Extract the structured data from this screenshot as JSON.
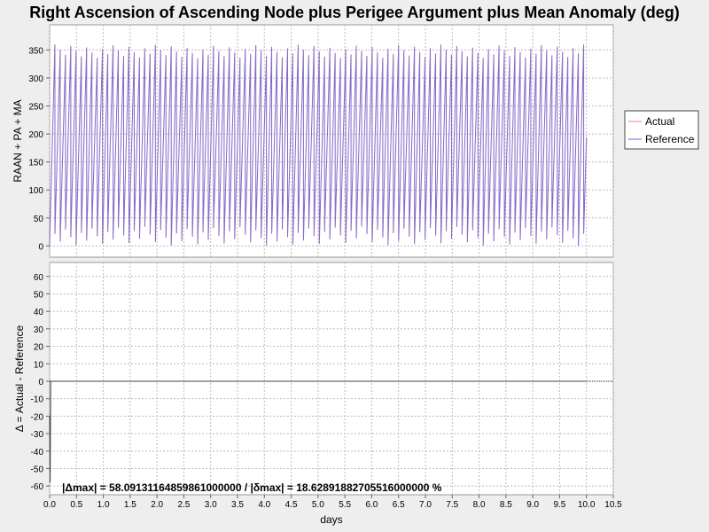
{
  "chart_data": {
    "type": "line",
    "title": "Right Ascension of Ascending Node plus Perigee Argument plus Mean Anomaly (deg)",
    "xlabel": "days",
    "xlim": [
      0.0,
      10.5
    ],
    "x_ticks": [
      "0.0",
      "0.5",
      "1.0",
      "1.5",
      "2.0",
      "2.5",
      "3.0",
      "3.5",
      "4.0",
      "4.5",
      "5.0",
      "5.5",
      "6.0",
      "6.5",
      "7.0",
      "7.5",
      "8.0",
      "8.5",
      "9.0",
      "9.5",
      "10.0",
      "10.5"
    ],
    "top_panel": {
      "ylabel": "RAAN + PA + MA",
      "ylim": [
        -20,
        395
      ],
      "y_ticks": [
        "0",
        "50",
        "100",
        "150",
        "200",
        "250",
        "300",
        "350"
      ],
      "grid": true,
      "series": [
        {
          "name": "Actual",
          "color": "#ff7a7a"
        },
        {
          "name": "Reference",
          "color": "#6464dc"
        }
      ],
      "wrap_period_days": 0.0985,
      "wrap_peak_range": [
        335,
        360
      ],
      "wrap_low_range": [
        0,
        35
      ],
      "x_end": 10.0
    },
    "bottom_panel": {
      "ylabel": "Δ = Actual - Reference",
      "ylim": [
        -65,
        68
      ],
      "y_ticks": [
        "60",
        "50",
        "40",
        "30",
        "20",
        "10",
        "0",
        "-10",
        "-20",
        "-30",
        "-40",
        "-50",
        "-60"
      ],
      "grid": true,
      "delta_series": {
        "x": [
          0.0,
          0.01,
          0.02,
          10.0
        ],
        "y": [
          -20,
          -58,
          0,
          0
        ]
      },
      "stats_text": "|Δmax| = 58.09131164859861000000      /      |δmax| = 18.62891882705516000000 %"
    },
    "legend": {
      "placement": "right",
      "entries": [
        "Actual",
        "Reference"
      ]
    }
  }
}
